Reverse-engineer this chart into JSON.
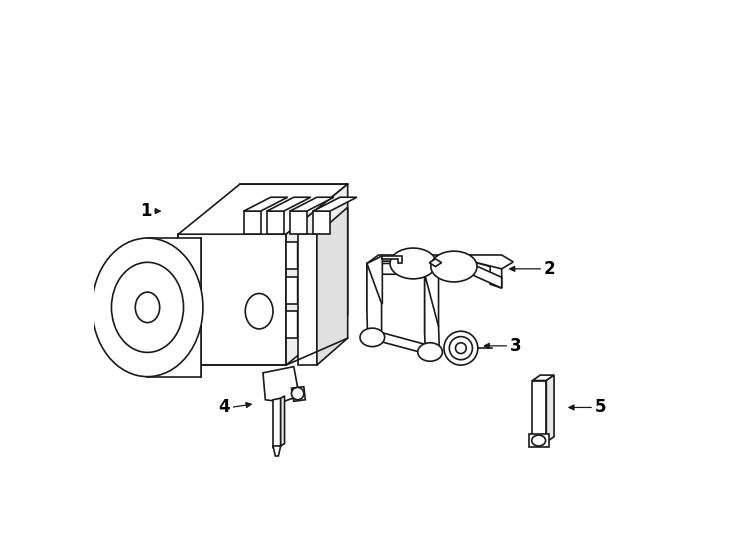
{
  "background_color": "#ffffff",
  "line_color": "#1a1a1a",
  "lw": 1.2,
  "figsize": [
    7.34,
    5.4
  ],
  "dpi": 100
}
